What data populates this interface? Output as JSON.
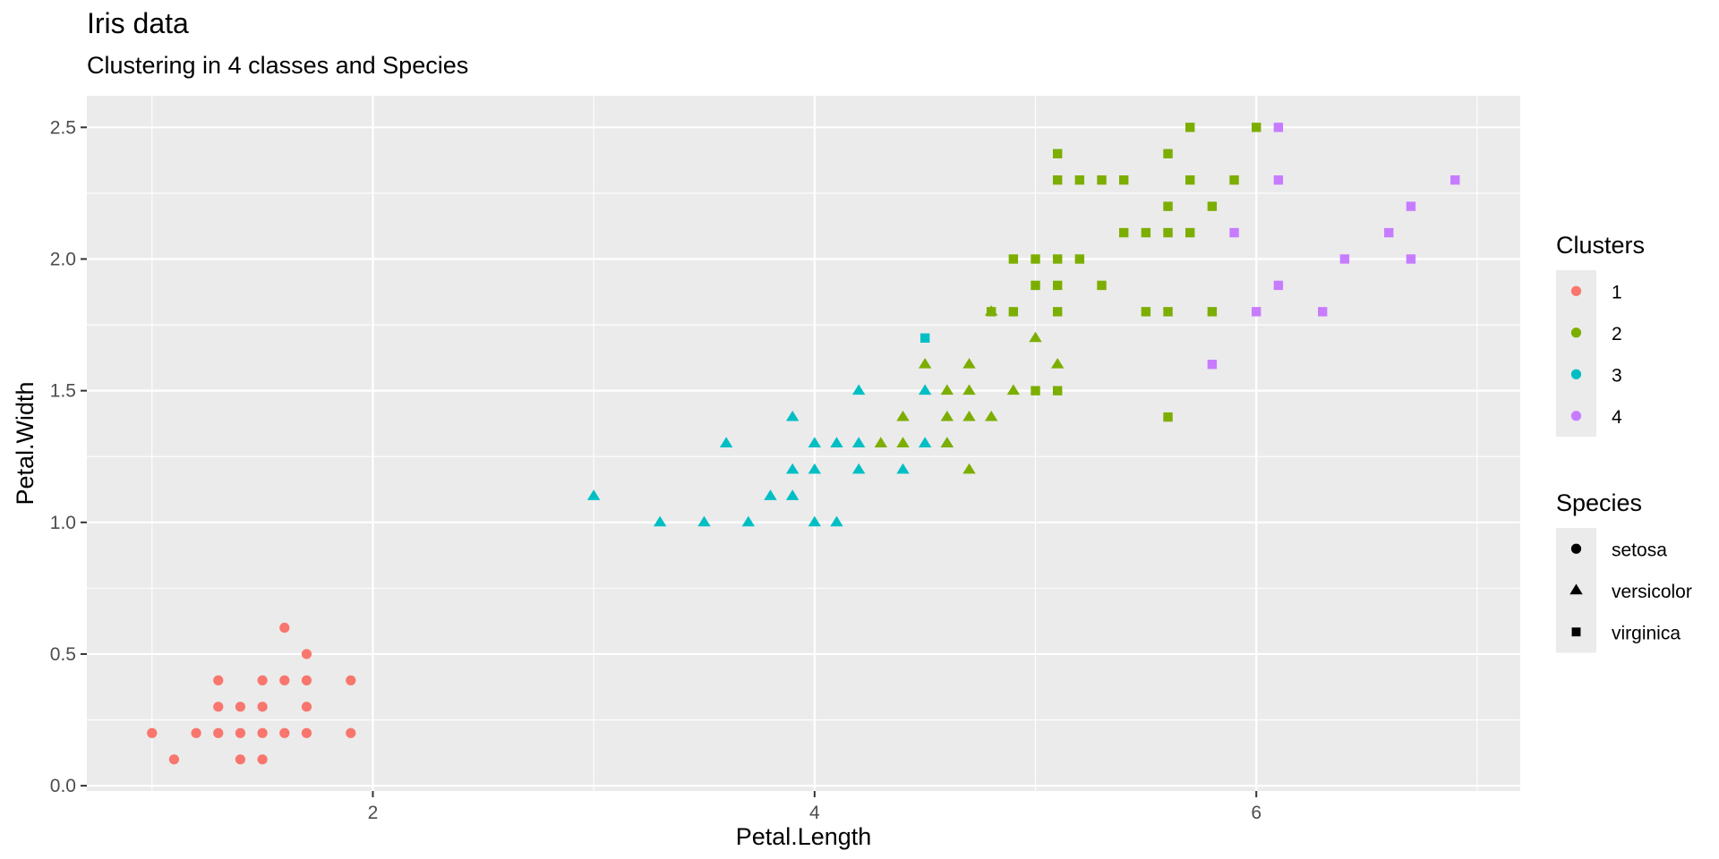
{
  "chart_data": {
    "type": "scatter",
    "title": "Iris data",
    "subtitle": "Clustering in 4 classes and Species",
    "xlabel": "Petal.Length",
    "ylabel": "Petal.Width",
    "xlim": [
      0.705,
      7.195
    ],
    "ylim": [
      -0.02,
      2.62
    ],
    "x_ticks": [
      2,
      4,
      6
    ],
    "y_ticks": [
      0.0,
      0.5,
      1.0,
      1.5,
      2.0,
      2.5
    ],
    "y_tick_labels": [
      "0.0",
      "0.5",
      "1.0",
      "1.5",
      "2.0",
      "2.5"
    ],
    "grid": true,
    "legend_position": "right",
    "cluster_colors": {
      "1": "#F8766D",
      "2": "#7CAE00",
      "3": "#00BFC4",
      "4": "#C77CFF"
    },
    "legends": [
      {
        "title": "Clusters",
        "entries": [
          {
            "label": "1",
            "color": "#F8766D",
            "shape": "circle"
          },
          {
            "label": "2",
            "color": "#7CAE00",
            "shape": "circle"
          },
          {
            "label": "3",
            "color": "#00BFC4",
            "shape": "circle"
          },
          {
            "label": "4",
            "color": "#C77CFF",
            "shape": "circle"
          }
        ]
      },
      {
        "title": "Species",
        "entries": [
          {
            "label": "setosa",
            "color": "#000000",
            "shape": "circle"
          },
          {
            "label": "versicolor",
            "color": "#000000",
            "shape": "triangle"
          },
          {
            "label": "virginica",
            "color": "#000000",
            "shape": "square"
          }
        ]
      }
    ],
    "series": [
      {
        "cluster": "1",
        "species": "setosa",
        "shape": "circle",
        "points": [
          [
            1.0,
            0.2
          ],
          [
            1.1,
            0.1
          ],
          [
            1.2,
            0.2
          ],
          [
            1.3,
            0.2
          ],
          [
            1.3,
            0.3
          ],
          [
            1.3,
            0.4
          ],
          [
            1.4,
            0.1
          ],
          [
            1.4,
            0.2
          ],
          [
            1.4,
            0.3
          ],
          [
            1.5,
            0.1
          ],
          [
            1.5,
            0.2
          ],
          [
            1.5,
            0.3
          ],
          [
            1.5,
            0.4
          ],
          [
            1.6,
            0.2
          ],
          [
            1.6,
            0.4
          ],
          [
            1.6,
            0.6
          ],
          [
            1.7,
            0.2
          ],
          [
            1.7,
            0.3
          ],
          [
            1.7,
            0.4
          ],
          [
            1.7,
            0.5
          ],
          [
            1.9,
            0.2
          ],
          [
            1.9,
            0.4
          ]
        ]
      },
      {
        "cluster": "3",
        "species": "versicolor",
        "shape": "triangle",
        "points": [
          [
            3.0,
            1.1
          ],
          [
            3.3,
            1.0
          ],
          [
            3.5,
            1.0
          ],
          [
            3.6,
            1.3
          ],
          [
            3.7,
            1.0
          ],
          [
            3.8,
            1.1
          ],
          [
            3.9,
            1.1
          ],
          [
            3.9,
            1.2
          ],
          [
            3.9,
            1.4
          ],
          [
            4.0,
            1.0
          ],
          [
            4.0,
            1.2
          ],
          [
            4.0,
            1.3
          ],
          [
            4.1,
            1.0
          ],
          [
            4.1,
            1.3
          ],
          [
            4.2,
            1.2
          ],
          [
            4.2,
            1.3
          ],
          [
            4.2,
            1.5
          ],
          [
            4.4,
            1.2
          ],
          [
            4.5,
            1.3
          ],
          [
            4.5,
            1.5
          ],
          [
            4.6,
            1.3
          ]
        ]
      },
      {
        "cluster": "3",
        "species": "virginica",
        "shape": "square",
        "points": [
          [
            4.5,
            1.7
          ]
        ]
      },
      {
        "cluster": "2",
        "species": "versicolor",
        "shape": "triangle",
        "points": [
          [
            4.3,
            1.3
          ],
          [
            4.4,
            1.3
          ],
          [
            4.4,
            1.4
          ],
          [
            4.5,
            1.6
          ],
          [
            4.6,
            1.4
          ],
          [
            4.6,
            1.5
          ],
          [
            4.6,
            1.3
          ],
          [
            4.7,
            1.2
          ],
          [
            4.7,
            1.4
          ],
          [
            4.7,
            1.5
          ],
          [
            4.7,
            1.6
          ],
          [
            4.8,
            1.4
          ],
          [
            4.8,
            1.8
          ],
          [
            4.9,
            1.5
          ],
          [
            5.0,
            1.7
          ],
          [
            5.1,
            1.6
          ]
        ]
      },
      {
        "cluster": "2",
        "species": "virginica",
        "shape": "square",
        "points": [
          [
            4.8,
            1.8
          ],
          [
            4.9,
            1.8
          ],
          [
            4.9,
            2.0
          ],
          [
            5.0,
            1.5
          ],
          [
            5.0,
            1.9
          ],
          [
            5.0,
            2.0
          ],
          [
            5.1,
            1.5
          ],
          [
            5.1,
            1.8
          ],
          [
            5.1,
            1.9
          ],
          [
            5.1,
            2.0
          ],
          [
            5.1,
            2.3
          ],
          [
            5.1,
            2.4
          ],
          [
            5.2,
            2.0
          ],
          [
            5.2,
            2.3
          ],
          [
            5.3,
            1.9
          ],
          [
            5.3,
            2.3
          ],
          [
            5.4,
            2.1
          ],
          [
            5.4,
            2.3
          ],
          [
            5.5,
            1.8
          ],
          [
            5.5,
            2.1
          ],
          [
            5.6,
            1.4
          ],
          [
            5.6,
            1.8
          ],
          [
            5.6,
            2.1
          ],
          [
            5.6,
            2.2
          ],
          [
            5.6,
            2.4
          ],
          [
            5.7,
            2.1
          ],
          [
            5.7,
            2.3
          ],
          [
            5.7,
            2.5
          ],
          [
            5.8,
            1.8
          ],
          [
            5.8,
            2.2
          ],
          [
            5.9,
            2.3
          ],
          [
            6.0,
            2.5
          ]
        ]
      },
      {
        "cluster": "4",
        "species": "virginica",
        "shape": "square",
        "points": [
          [
            5.8,
            1.6
          ],
          [
            5.9,
            2.1
          ],
          [
            6.0,
            1.8
          ],
          [
            6.1,
            1.9
          ],
          [
            6.1,
            2.3
          ],
          [
            6.1,
            2.5
          ],
          [
            6.3,
            1.8
          ],
          [
            6.4,
            2.0
          ],
          [
            6.6,
            2.1
          ],
          [
            6.7,
            2.0
          ],
          [
            6.7,
            2.2
          ],
          [
            6.9,
            2.3
          ]
        ]
      }
    ]
  }
}
